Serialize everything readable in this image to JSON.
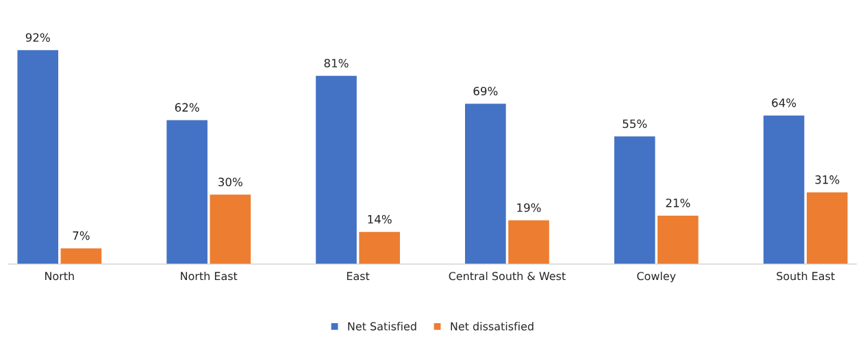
{
  "chart_data": {
    "type": "bar",
    "categories": [
      "North",
      "North East",
      "East",
      "Central South & West",
      "Cowley",
      "South East"
    ],
    "series": [
      {
        "name": "Net Satisfied",
        "color": "#4472c4",
        "values": [
          92,
          62,
          81,
          69,
          55,
          64
        ],
        "value_labels": [
          "92%",
          "62%",
          "81%",
          "69%",
          "55%",
          "64%"
        ]
      },
      {
        "name": "Net dissatisfied",
        "color": "#ed7d31",
        "values": [
          7,
          30,
          14,
          19,
          21,
          31
        ],
        "value_labels": [
          "7%",
          "30%",
          "14%",
          "19%",
          "21%",
          "31%"
        ]
      }
    ],
    "legend": "bottom"
  }
}
